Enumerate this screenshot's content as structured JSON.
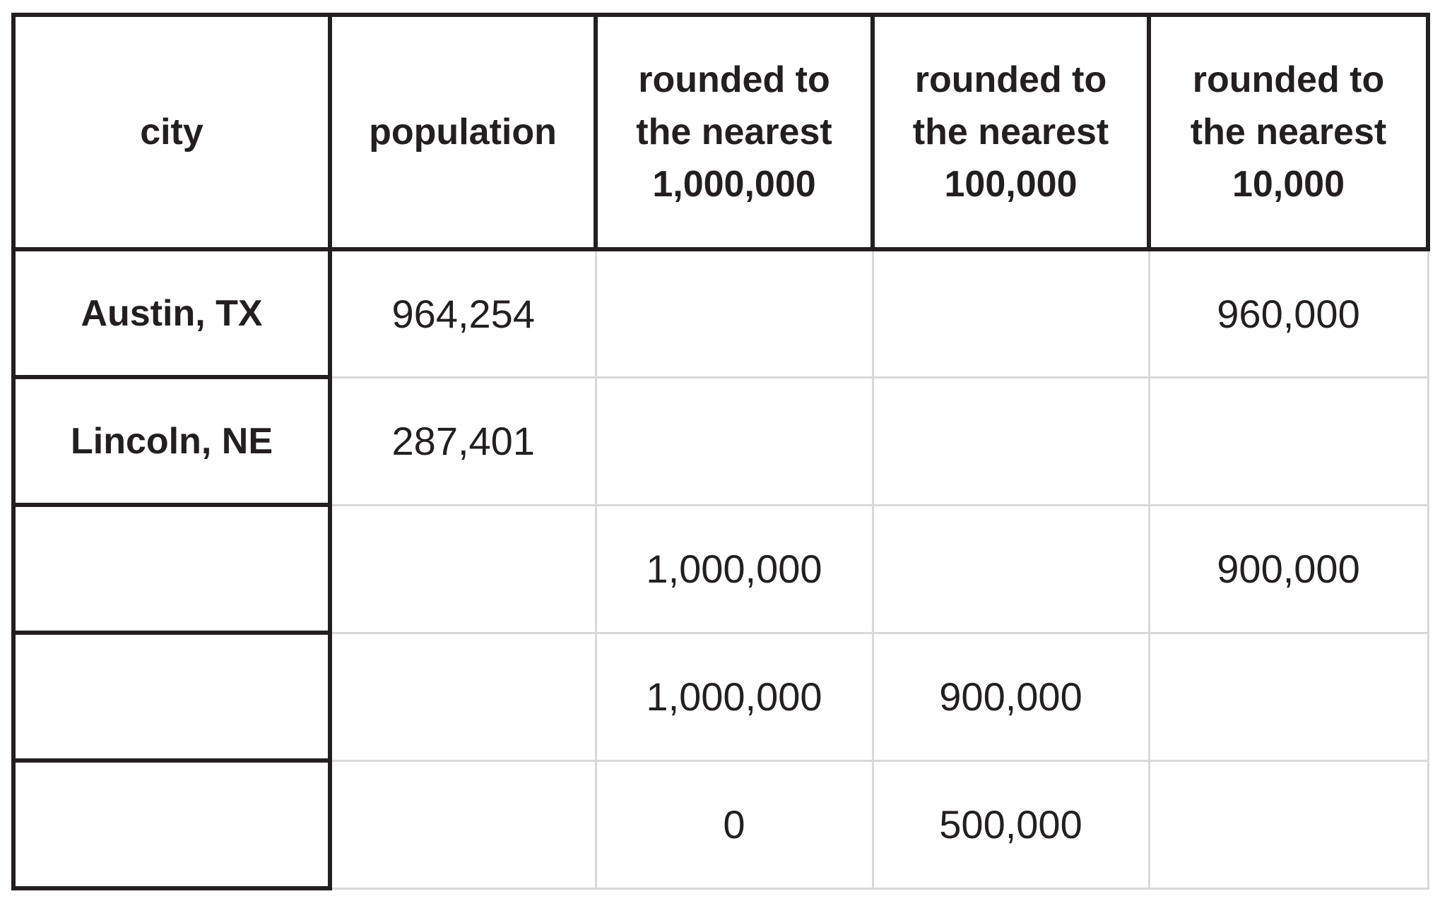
{
  "colors": {
    "thick_border": "#231f20",
    "thin_border": "#d9d9d9",
    "text": "#231f20",
    "background": "#ffffff"
  },
  "chart_data": {
    "type": "table",
    "columns": [
      "city",
      "population",
      "rounded to the nearest 1,000,000",
      "rounded to the nearest 100,000",
      "rounded to the nearest 10,000"
    ],
    "header_lines": [
      [
        "city"
      ],
      [
        "population"
      ],
      [
        "rounded to",
        "the nearest",
        "1,000,000"
      ],
      [
        "rounded to",
        "the nearest",
        "100,000"
      ],
      [
        "rounded to",
        "the nearest",
        "10,000"
      ]
    ],
    "rows": [
      [
        "Austin, TX",
        "964,254",
        "",
        "",
        "960,000"
      ],
      [
        "Lincoln, NE",
        "287,401",
        "",
        "",
        ""
      ],
      [
        "",
        "",
        "1,000,000",
        "",
        "900,000"
      ],
      [
        "",
        "",
        "1,000,000",
        "900,000",
        ""
      ],
      [
        "",
        "",
        "0",
        "500,000",
        ""
      ]
    ]
  }
}
